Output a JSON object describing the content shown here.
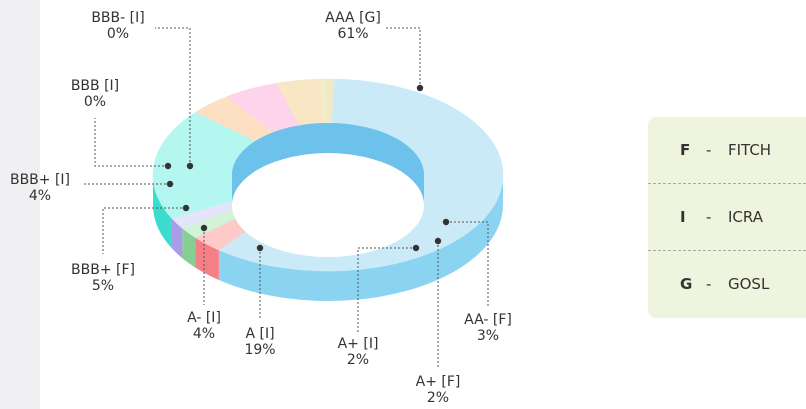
{
  "chart_data": {
    "type": "pie",
    "style": "3d-donut",
    "slices": [
      {
        "label": "AAA [G]",
        "value_text": "61%",
        "value": 61,
        "top": "#cbeaf8",
        "side": "#8ad4f2"
      },
      {
        "label": "AA- [F]",
        "value_text": "3%",
        "value": 3,
        "top": "#fdc9c9",
        "side": "#f57f86"
      },
      {
        "label": "A+ [F]",
        "value_text": "2%",
        "value": 2,
        "top": "#d2f3d8",
        "side": "#86cf92"
      },
      {
        "label": "A+ [I]",
        "value_text": "2%",
        "value": 2,
        "top": "#e4e4fb",
        "side": "#a99ce6"
      },
      {
        "label": "A [I]",
        "value_text": "19%",
        "value": 19,
        "top": "#b4f7f0",
        "side": "#3cddce"
      },
      {
        "label": "A- [I]",
        "value_text": "4%",
        "value": 4,
        "top": "#fde0c4",
        "side": "#f0a35c"
      },
      {
        "label": "BBB+ [F]",
        "value_text": "5%",
        "value": 5,
        "top": "#fdd4ec",
        "side": "#e486c0"
      },
      {
        "label": "BBB+ [I]",
        "value_text": "4%",
        "value": 4,
        "top": "#f9e6c4",
        "side": "#e2c28a"
      },
      {
        "label": "BBB [I]",
        "value_text": "0%",
        "value": 0,
        "top": "#f4ecc6",
        "side": "#d8cc86"
      },
      {
        "label": "BBB- [I]",
        "value_text": "0%",
        "value": 0,
        "top": "#f0e9c8",
        "side": "#d2c88e"
      }
    ]
  },
  "legend": [
    {
      "code": "F",
      "sep": "-",
      "name": "FITCH"
    },
    {
      "code": "I",
      "sep": "-",
      "name": "ICRA"
    },
    {
      "code": "G",
      "sep": "-",
      "name": "GOSL"
    }
  ]
}
